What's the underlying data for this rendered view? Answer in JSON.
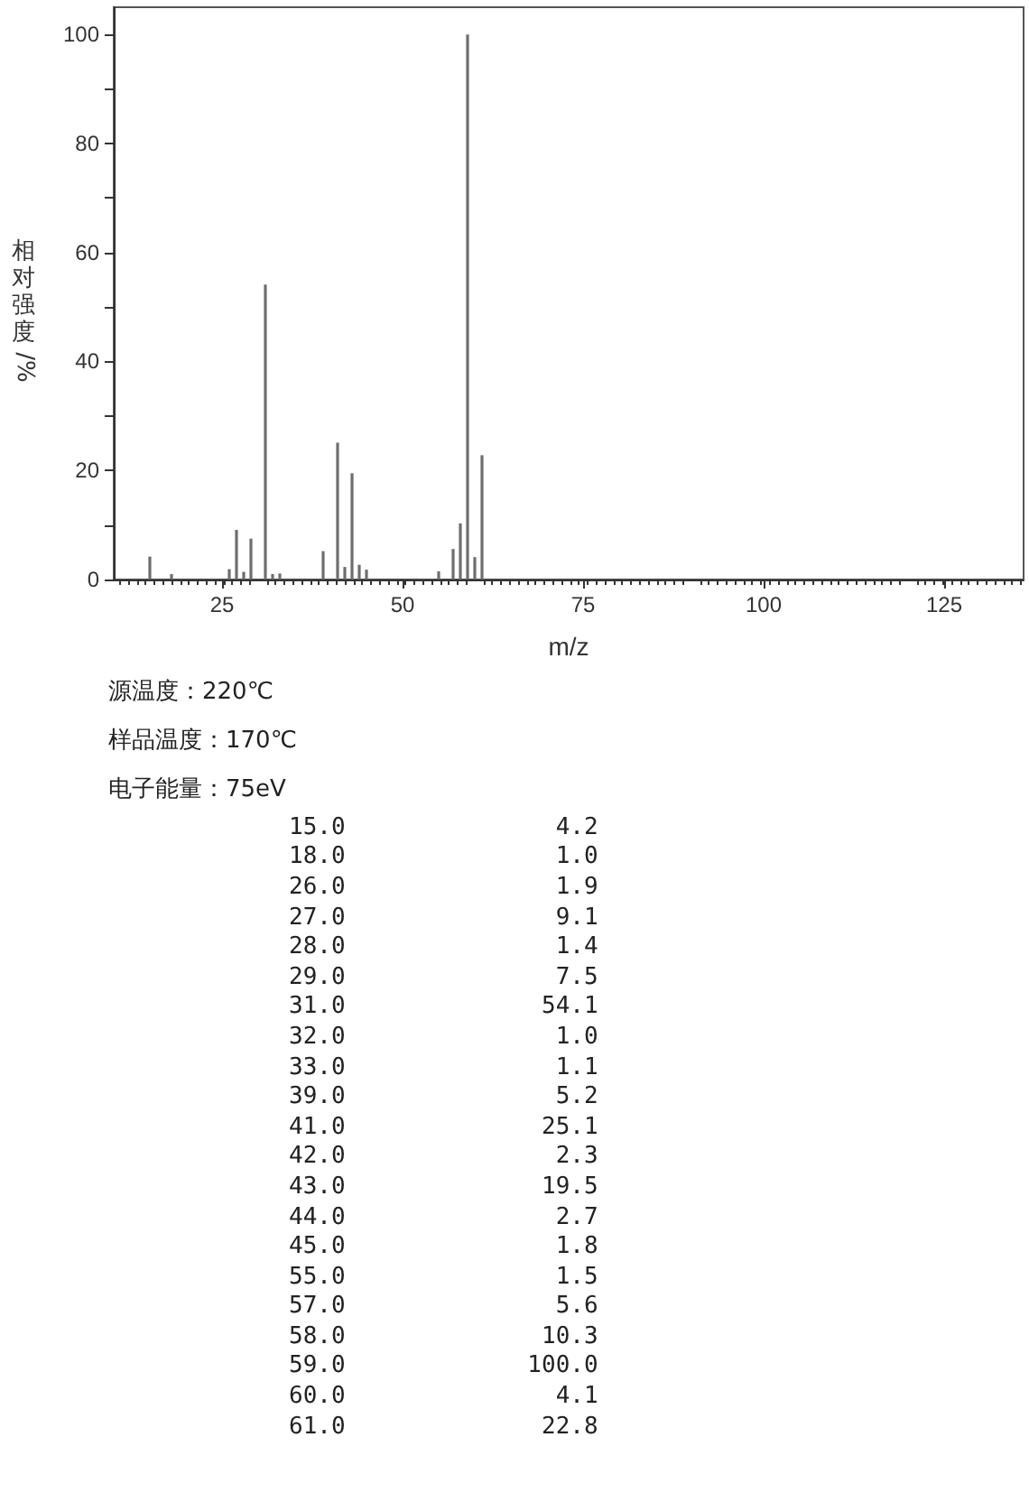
{
  "chart_data": [
    {
      "type": "bar",
      "xlabel": "m/z",
      "ylabel": "相对强度/%",
      "x": [
        15,
        18,
        26,
        27,
        28,
        29,
        31,
        32,
        33,
        39,
        41,
        42,
        43,
        44,
        45,
        55,
        57,
        58,
        59,
        60,
        61
      ],
      "values": [
        4.2,
        1.0,
        1.9,
        9.1,
        1.4,
        7.5,
        54.1,
        1.0,
        1.1,
        5.2,
        25.1,
        2.3,
        19.5,
        2.7,
        1.8,
        1.5,
        5.6,
        10.3,
        100.0,
        4.1,
        22.8
      ],
      "color": "#6e6e6e",
      "xlim": [
        10,
        136
      ],
      "xticks": [
        25,
        50,
        75,
        100,
        125
      ],
      "ylim": [
        0,
        105
      ],
      "yticks": [
        0,
        {
          "value": 10,
          "label": null
        },
        20,
        {
          "value": 30,
          "label": null
        },
        40,
        {
          "value": 50,
          "label": null
        },
        60,
        {
          "value": 70,
          "label": null
        },
        80,
        {
          "value": 90,
          "label": null
        },
        100
      ],
      "grid": false,
      "annotations": [
        "源温度：220℃",
        "样品温度：170℃",
        "电子能量：75eV"
      ]
    },
    {
      "type": "other",
      "annotations": [
        "15.0",
        "4.2",
        "18.0",
        "1.0",
        "26.0",
        "1.9",
        "27.0",
        "9.1",
        "28.0",
        "1.4",
        "29.0",
        "7.5",
        "31.0",
        "54.1",
        "32.0",
        "1.0",
        "33.0",
        "1.1",
        "39.0",
        "5.2",
        "41.0",
        "25.1",
        "42.0",
        "2.3",
        "43.0",
        "19.5",
        "44.0",
        "2.7",
        "45.0",
        "1.8",
        "55.0",
        "1.5",
        "57.0",
        "5.6",
        "58.0",
        "10.3",
        "59.0",
        "100.0",
        "60.0",
        "4.1",
        "61.0",
        "22.8"
      ]
    }
  ]
}
